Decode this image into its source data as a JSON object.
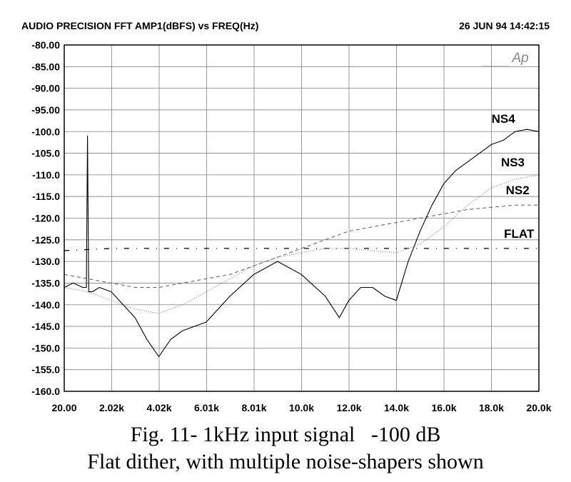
{
  "header": {
    "left": "AUDIO PRECISION FFT   AMP1(dBFS)  vs  FREQ(Hz)",
    "right": "26 JUN 94 14:42:15"
  },
  "watermark": "Ap",
  "caption": {
    "line1": "Fig. 11- 1kHz input signal   -100 dB",
    "line2": "Flat dither, with multiple noise-shapers shown"
  },
  "chart_data": {
    "type": "line",
    "xlim": [
      20,
      20000
    ],
    "ylim": [
      -160,
      -80
    ],
    "x_ticks": [
      20,
      2018,
      4016,
      6014,
      8012,
      10010,
      12008,
      14006,
      16004,
      18002,
      20000
    ],
    "x_tick_labels": [
      "20.00",
      "2.02k",
      "4.02k",
      "6.01k",
      "8.01k",
      "10.0k",
      "12.0k",
      "14.0k",
      "16.0k",
      "18.0k",
      "20.0k"
    ],
    "y_ticks": [
      -80,
      -85,
      -90,
      -95,
      -100,
      -105,
      -110,
      -115,
      -120,
      -125,
      -130,
      -135,
      -140,
      -145,
      -150,
      -155,
      -160
    ],
    "y_tick_labels": [
      "-80.00",
      "-85.00",
      "-90.00",
      "-95.00",
      "-100.0",
      "-105.0",
      "-110.0",
      "-115.0",
      "-120.0",
      "-125.0",
      "-130.0",
      "-135.0",
      "-140.0",
      "-145.0",
      "-150.0",
      "-155.0",
      "-160.0"
    ],
    "grid": true,
    "series": [
      {
        "name": "NS4",
        "style": "solid",
        "color": "#000000",
        "x": [
          20,
          400,
          800,
          950,
          1000,
          1050,
          1200,
          1500,
          2000,
          2500,
          3000,
          3500,
          4000,
          4500,
          5000,
          6000,
          7000,
          8000,
          9000,
          10000,
          11000,
          11600,
          12000,
          12500,
          13000,
          13500,
          14000,
          14500,
          15000,
          15500,
          16000,
          16500,
          17000,
          17500,
          18000,
          18500,
          19000,
          19500,
          20000
        ],
        "y": [
          -136,
          -135,
          -136,
          -136,
          -101,
          -137,
          -137,
          -136,
          -137,
          -140,
          -143,
          -148,
          -152,
          -148,
          -146,
          -144,
          -138,
          -133,
          -130,
          -133,
          -138,
          -143,
          -139,
          -136,
          -136,
          -138,
          -139,
          -130,
          -123,
          -117,
          -112,
          -109,
          -107,
          -105,
          -103,
          -102,
          -100,
          -99.5,
          -100
        ]
      },
      {
        "name": "NS3",
        "style": "dotted",
        "color": "#8c8c8c",
        "x": [
          20,
          1000,
          2000,
          3000,
          4000,
          5000,
          6000,
          7000,
          8000,
          9000,
          10000,
          11000,
          12000,
          13000,
          14000,
          15000,
          16000,
          17000,
          18000,
          19000,
          20000
        ],
        "y": [
          -136,
          -137,
          -139,
          -141,
          -142,
          -140,
          -137,
          -134,
          -131,
          -129,
          -128,
          -127,
          -127,
          -127.5,
          -128,
          -126,
          -122,
          -117,
          -113,
          -111,
          -110
        ]
      },
      {
        "name": "NS2",
        "style": "dashed",
        "color": "#5a5a5a",
        "x": [
          20,
          1000,
          2000,
          3000,
          4000,
          5000,
          6000,
          7000,
          8000,
          9000,
          10000,
          11000,
          12000,
          13000,
          14000,
          15000,
          16000,
          17000,
          18000,
          19000,
          20000
        ],
        "y": [
          -133,
          -134,
          -135,
          -136,
          -136,
          -135,
          -134,
          -133,
          -131,
          -129,
          -127,
          -125,
          -123,
          -122,
          -121,
          -120,
          -119,
          -118,
          -117.5,
          -117,
          -117
        ]
      },
      {
        "name": "FLAT",
        "style": "dashdot",
        "color": "#000000",
        "x": [
          20,
          2000,
          4000,
          6000,
          8000,
          10000,
          12000,
          14000,
          16000,
          18000,
          20000
        ],
        "y": [
          -127.5,
          -127,
          -127,
          -127,
          -127,
          -127,
          -127,
          -127,
          -127,
          -127,
          -127
        ]
      }
    ],
    "annotations": [
      {
        "text": "NS4",
        "x": 19000,
        "y": -98
      },
      {
        "text": "NS3",
        "x": 19400,
        "y": -108
      },
      {
        "text": "NS2",
        "x": 19600,
        "y": -114.5
      },
      {
        "text": "FLAT",
        "x": 19800,
        "y": -124.5
      }
    ]
  }
}
